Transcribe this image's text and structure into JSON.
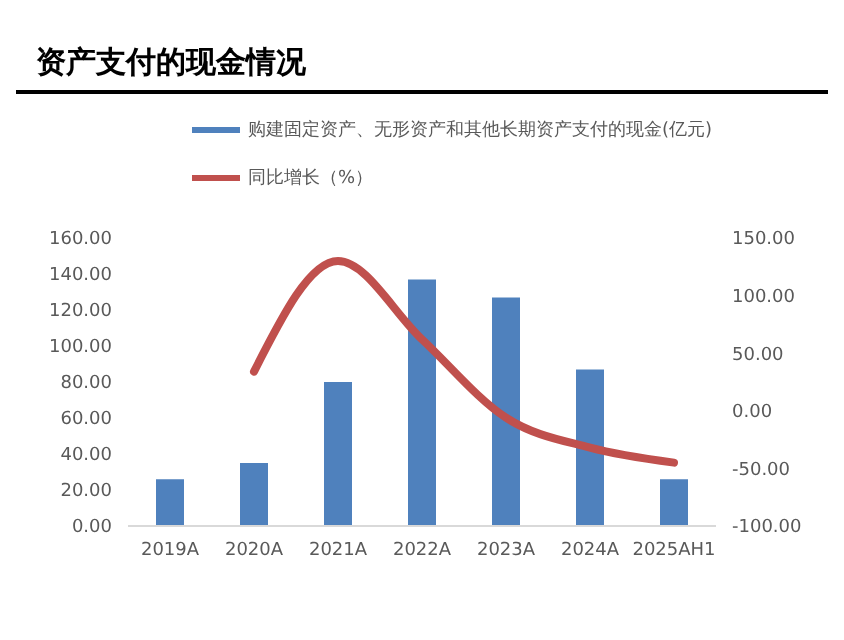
{
  "chart_data": {
    "type": "bar",
    "title": "资产支付的现金情况",
    "categories": [
      "2019A",
      "2020A",
      "2021A",
      "2022A",
      "2023A",
      "2024A",
      "2025AH1"
    ],
    "series": [
      {
        "name": "购建固定资产、无形资产和其他长期资产支付的现金(亿元)",
        "color": "#4f81bd",
        "values": [
          26,
          35,
          80,
          137,
          127,
          87,
          26
        ]
      },
      {
        "name": "同比增长（%）",
        "type": "line",
        "axis": "y2",
        "color": "#c0504d",
        "values": [
          null,
          34,
          130,
          62,
          -6,
          -32,
          -45
        ]
      }
    ],
    "ylim": [
      0,
      160
    ],
    "yticks": [
      {
        "value": 0,
        "label": "0.00"
      },
      {
        "value": 20,
        "label": "20.00"
      },
      {
        "value": 40,
        "label": "40.00"
      },
      {
        "value": 60,
        "label": "60.00"
      },
      {
        "value": 80,
        "label": "80.00"
      },
      {
        "value": 100,
        "label": "100.00"
      },
      {
        "value": 120,
        "label": "120.00"
      },
      {
        "value": 140,
        "label": "140.00"
      },
      {
        "value": 160,
        "label": "160.00"
      }
    ],
    "y2lim": [
      -100,
      150
    ],
    "y2ticks": [
      {
        "value": -100,
        "label": "-100.00"
      },
      {
        "value": -50,
        "label": "-50.00"
      },
      {
        "value": 0,
        "label": "0.00"
      },
      {
        "value": 50,
        "label": "50.00"
      },
      {
        "value": 100,
        "label": "100.00"
      },
      {
        "value": 150,
        "label": "150.00"
      }
    ],
    "grid": false,
    "legend": "top",
    "marker": "none",
    "line_style": "solid"
  }
}
